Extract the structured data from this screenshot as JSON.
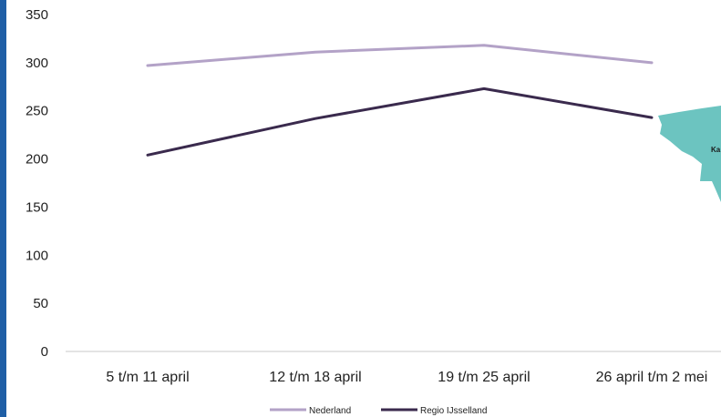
{
  "chart_data": {
    "type": "line",
    "categories": [
      "5 t/m 11 april",
      "12 t/m 18 april",
      "19 t/m 25 april",
      "26 april t/m 2 mei"
    ],
    "series": [
      {
        "name": "Nederland",
        "values": [
          297,
          311,
          318,
          300
        ],
        "color": "#b3a2c7"
      },
      {
        "name": "Regio IJsselland",
        "values": [
          204,
          242,
          273,
          243
        ],
        "color": "#3a2a4d"
      }
    ],
    "ylim": [
      0,
      350
    ],
    "yticks": [
      0,
      50,
      100,
      150,
      200,
      250,
      300,
      350
    ],
    "title": "",
    "xlabel": "",
    "ylabel": "",
    "grid": false,
    "legend_position": "bottom"
  },
  "overlay": {
    "map_fragment_label": "Ka",
    "map_color": "#6cc4c0",
    "accent_bar_color": "#1f5fa6"
  }
}
